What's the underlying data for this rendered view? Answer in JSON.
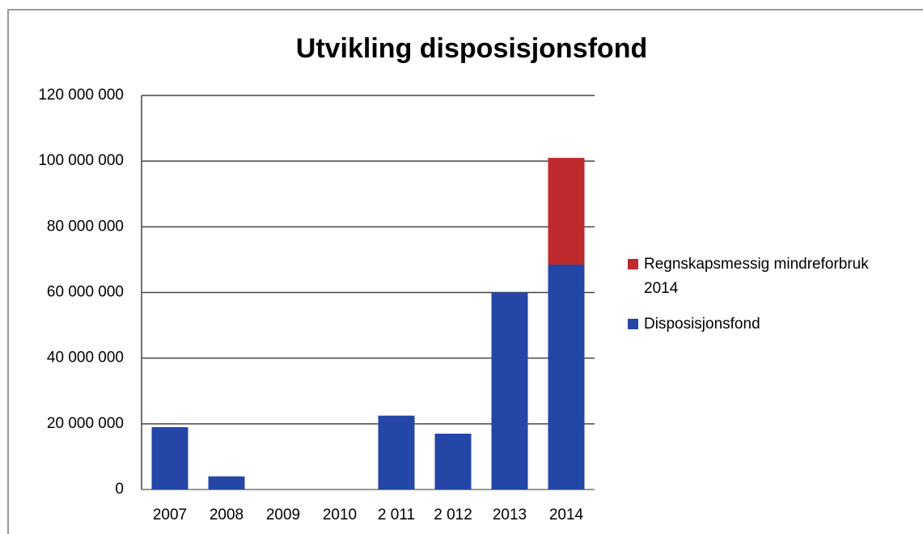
{
  "chart_data": {
    "type": "stacked_bar",
    "title": "Utvikling disposisjonsfond",
    "categories": [
      "2007",
      "2008",
      "2009",
      "2010",
      "2 011",
      "2 012",
      "2013",
      "2014"
    ],
    "series": [
      {
        "name": "Disposisjonsfond",
        "color": "#2446a6",
        "values": [
          19000000,
          4000000,
          0,
          0,
          22500000,
          17000000,
          60000000,
          68500000
        ]
      },
      {
        "name": "Regnskapsmessig mindreforbruk 2014",
        "color": "#bf2a2c",
        "values": [
          0,
          0,
          0,
          0,
          0,
          0,
          0,
          32500000
        ]
      }
    ],
    "ylim": [
      0,
      120000000
    ],
    "yticks": [
      0,
      {
        "value": 20000000,
        "label": "20 000 000"
      },
      {
        "value": 40000000,
        "label": "40 000 000"
      },
      {
        "value": 60000000,
        "label": "60 000 000"
      },
      {
        "value": 80000000,
        "label": "80 000 000"
      },
      {
        "value": 100000000,
        "label": "100 000 000"
      },
      {
        "value": 120000000,
        "label": "120 000 000"
      }
    ],
    "grid": true,
    "legend": "right"
  }
}
